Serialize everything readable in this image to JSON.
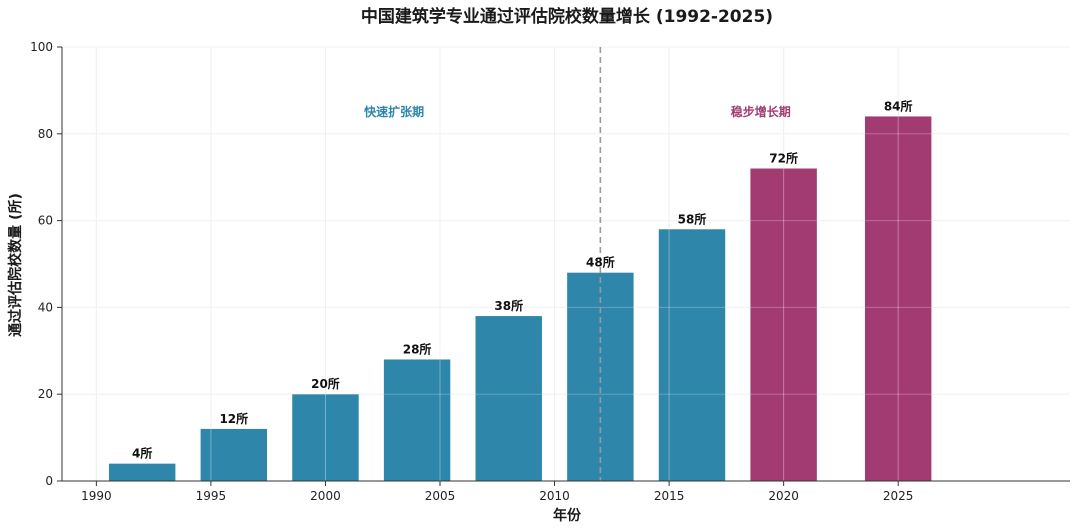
{
  "chart_data": {
    "type": "bar",
    "title": "中国建筑学专业通过评估院校数量增长 (1992-2025)",
    "xlabel": "年份",
    "ylabel": "通过评估院校数量 (所)",
    "xlim": [
      1988.5,
      2032.5
    ],
    "ylim": [
      0,
      100
    ],
    "x_ticks": [
      1990,
      1995,
      2000,
      2005,
      2010,
      2015,
      2020,
      2025
    ],
    "y_ticks": [
      0,
      20,
      40,
      60,
      80,
      100
    ],
    "grid": true,
    "series": [
      {
        "values": [
          {
            "x": 1992,
            "y": 4,
            "label": "4所",
            "color": "#2e86ab"
          },
          {
            "x": 1996,
            "y": 12,
            "label": "12所",
            "color": "#2e86ab"
          },
          {
            "x": 2000,
            "y": 20,
            "label": "20所",
            "color": "#2e86ab"
          },
          {
            "x": 2004,
            "y": 28,
            "label": "28所",
            "color": "#2e86ab"
          },
          {
            "x": 2008,
            "y": 38,
            "label": "38所",
            "color": "#2e86ab"
          },
          {
            "x": 2012,
            "y": 48,
            "label": "48所",
            "color": "#2e86ab"
          },
          {
            "x": 2016,
            "y": 58,
            "label": "58所",
            "color": "#2e86ab"
          },
          {
            "x": 2020,
            "y": 72,
            "label": "72所",
            "color": "#a23b72"
          },
          {
            "x": 2025,
            "y": 84,
            "label": "84所",
            "color": "#a23b72"
          }
        ]
      }
    ],
    "bar_width": 2.9,
    "divider_x": 2012,
    "annotations": [
      {
        "text": "快速扩张期",
        "x": 2003,
        "y": 85,
        "color": "#2e86ab"
      },
      {
        "text": "稳步增长期",
        "x": 2019,
        "y": 85,
        "color": "#a23b72"
      }
    ]
  }
}
